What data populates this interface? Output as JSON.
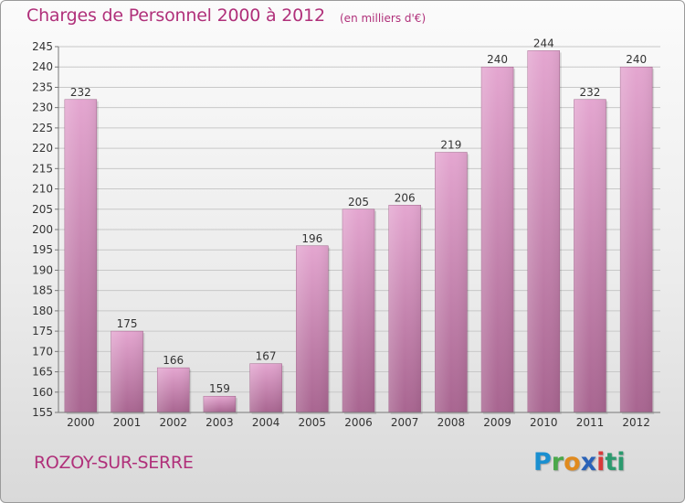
{
  "header": {
    "title": "Charges de Personnel 2000 à 2012",
    "unit": "(en milliers d'€)"
  },
  "footer": {
    "commune": "ROZOY-SUR-SERRE",
    "logo": "Proxiti",
    "logo_letters": [
      "P",
      "r",
      "o",
      "x",
      "i",
      "ti"
    ]
  },
  "colors": {
    "title": "#b0307a",
    "bar_top": "#e4a6d0",
    "bar_bottom": "#a86590",
    "grid": "#c8c8c8",
    "axis_text": "#333333"
  },
  "chart_data": {
    "type": "bar",
    "categories": [
      "2000",
      "2001",
      "2002",
      "2003",
      "2004",
      "2005",
      "2006",
      "2007",
      "2008",
      "2009",
      "2010",
      "2011",
      "2012"
    ],
    "values": [
      232,
      175,
      166,
      159,
      167,
      196,
      205,
      206,
      219,
      240,
      244,
      232,
      240
    ],
    "title": "Charges de Personnel 2000 à 2012",
    "subtitle": "(en milliers d'€)",
    "xlabel": "",
    "ylabel": "",
    "ylim": [
      155,
      245
    ],
    "yticks": [
      155,
      160,
      165,
      170,
      175,
      180,
      185,
      190,
      195,
      200,
      205,
      210,
      215,
      220,
      225,
      230,
      235,
      240,
      245
    ],
    "grid": true,
    "data_labels": true
  }
}
